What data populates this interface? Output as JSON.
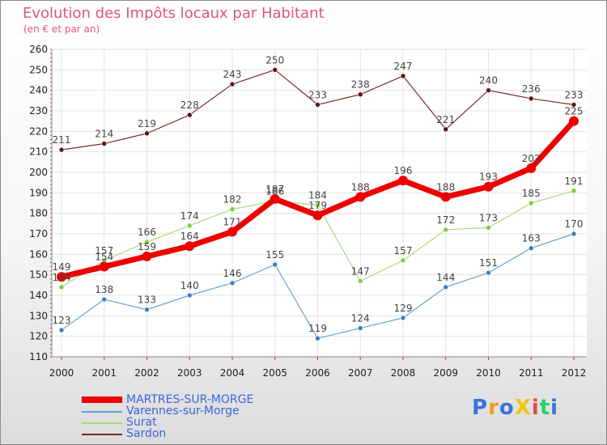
{
  "header": {
    "title": "Evolution des Impôts locaux par Habitant",
    "subtitle": "(en € et par an)"
  },
  "logo": {
    "text": "ProXiti",
    "colors": [
      "#3b73d9",
      "#f39c12",
      "#3b73d9",
      "#f1c40f",
      "#e74c3c",
      "#2ecc71",
      "#3b73d9"
    ]
  },
  "chart_data": {
    "type": "line",
    "title": "Evolution des Impôts locaux par Habitant",
    "subtitle": "(en € et par an)",
    "x": [
      "2000",
      "2001",
      "2002",
      "2003",
      "2004",
      "2005",
      "2006",
      "2007",
      "2008",
      "2009",
      "2010",
      "2011",
      "2012"
    ],
    "ylim": [
      110,
      260
    ],
    "yticks": [
      110,
      120,
      130,
      140,
      150,
      160,
      170,
      180,
      190,
      200,
      210,
      220,
      230,
      240,
      250,
      260
    ],
    "grid": true,
    "legend_position": "bottom-left",
    "series": [
      {
        "name": "Sardon",
        "color": "#7a2b2b",
        "marker": "#5a1414",
        "width": 1.2,
        "radius": 3,
        "values": [
          211,
          214,
          219,
          228,
          243,
          250,
          233,
          238,
          247,
          221,
          240,
          236,
          233
        ]
      },
      {
        "name": "Surat",
        "color": "#a6de7a",
        "marker": "#7ccf3c",
        "width": 1.2,
        "radius": 3,
        "values": [
          144,
          157,
          166,
          174,
          182,
          186,
          184,
          147,
          157,
          172,
          173,
          185,
          191
        ]
      },
      {
        "name": "Varennes-sur-Morge",
        "color": "#6a9fd0",
        "marker": "#3d7fc1",
        "width": 1.2,
        "radius": 3,
        "values": [
          123,
          138,
          133,
          140,
          146,
          155,
          119,
          124,
          129,
          144,
          151,
          163,
          170
        ]
      },
      {
        "name": "MARTRES-SUR-MORGE",
        "color": "#ee0000",
        "marker": "#ee0000",
        "width": 7,
        "radius": 6,
        "values": [
          149,
          154,
          159,
          164,
          171,
          187,
          179,
          188,
          196,
          188,
          193,
          202,
          225
        ]
      }
    ],
    "legend": [
      {
        "name": "MARTRES-SUR-MORGE",
        "color": "#ee0000"
      },
      {
        "name": "Varennes-sur-Morge",
        "color": "#6a9fd0"
      },
      {
        "name": "Surat",
        "color": "#a6de7a"
      },
      {
        "name": "Sardon",
        "color": "#7a2b2b"
      }
    ]
  }
}
